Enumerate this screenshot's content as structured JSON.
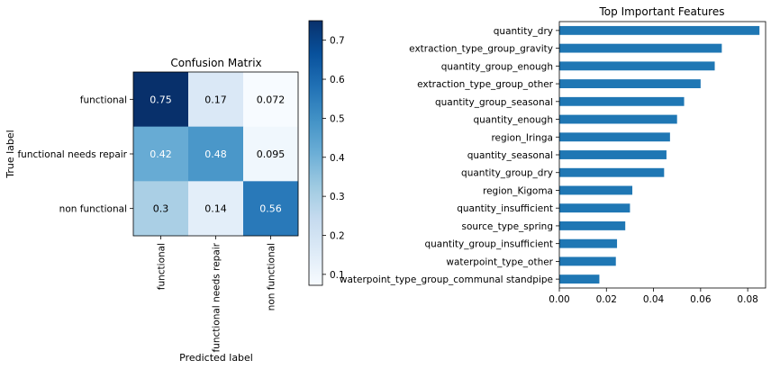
{
  "chart_data": [
    {
      "type": "heatmap",
      "title": "Confusion Matrix",
      "xlabel": "Predicted label",
      "ylabel": "True label",
      "x_categories": [
        "functional",
        "functional needs repair",
        "non functional"
      ],
      "y_categories": [
        "functional",
        "functional needs repair",
        "non functional"
      ],
      "values": [
        [
          0.75,
          0.17,
          0.072
        ],
        [
          0.42,
          0.48,
          0.095
        ],
        [
          0.3,
          0.14,
          0.56
        ]
      ],
      "cell_labels": [
        [
          "0.75",
          "0.17",
          "0.072"
        ],
        [
          "0.42",
          "0.48",
          "0.095"
        ],
        [
          "0.3",
          "0.14",
          "0.56"
        ]
      ],
      "colormap": "Blues",
      "colorbar": {
        "range": [
          0.072,
          0.75
        ],
        "ticks": [
          0.1,
          0.2,
          0.3,
          0.4,
          0.5,
          0.6,
          0.7
        ],
        "tick_labels": [
          "0.1",
          "0.2",
          "0.3",
          "0.4",
          "0.5",
          "0.6",
          "0.7"
        ]
      },
      "grid": false
    },
    {
      "type": "bar",
      "orientation": "horizontal",
      "title": "Top Important Features",
      "xlabel": "",
      "ylabel": "",
      "categories": [
        "quantity_dry",
        "extraction_type_group_gravity",
        "quantity_group_enough",
        "extraction_type_group_other",
        "quantity_group_seasonal",
        "quantity_enough",
        "region_Iringa",
        "quantity_seasonal",
        "quantity_group_dry",
        "region_Kigoma",
        "quantity_insufficient",
        "source_type_spring",
        "quantity_group_insufficient",
        "waterpoint_type_other",
        "waterpoint_type_group_communal standpipe"
      ],
      "values": [
        0.085,
        0.069,
        0.066,
        0.06,
        0.053,
        0.05,
        0.047,
        0.0455,
        0.0445,
        0.031,
        0.03,
        0.028,
        0.0245,
        0.024,
        0.017
      ],
      "xlim": [
        0,
        0.0876
      ],
      "x_ticks": [
        0.0,
        0.02,
        0.04,
        0.06,
        0.08
      ],
      "x_tick_labels": [
        "0.00",
        "0.02",
        "0.04",
        "0.06",
        "0.08"
      ],
      "bar_color": "#1f77b4",
      "grid": false
    }
  ]
}
